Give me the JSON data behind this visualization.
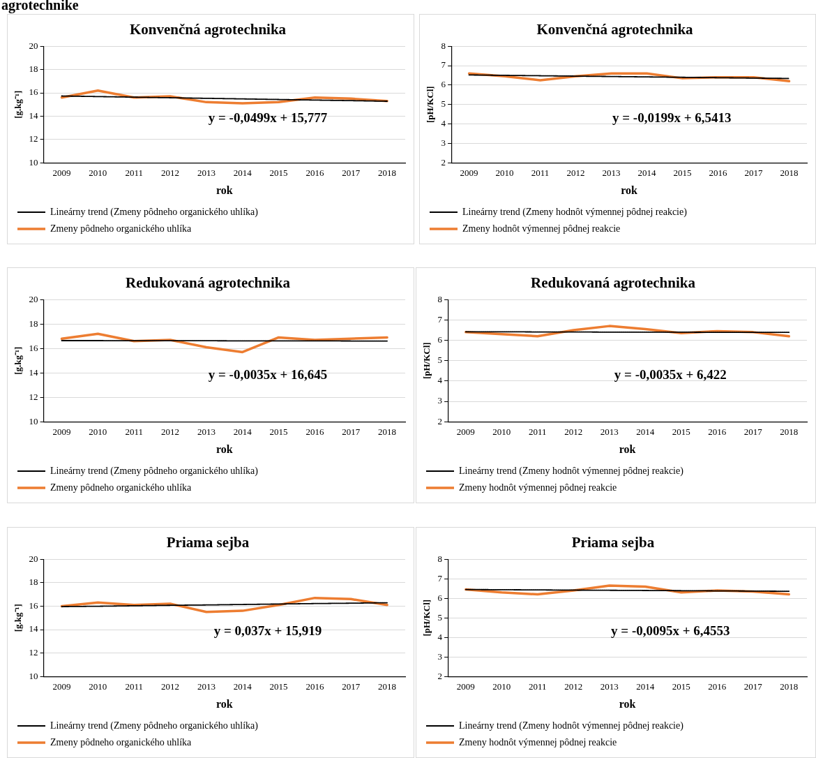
{
  "chart_data": [
    {
      "type": "line",
      "title": "Konvenčná agrotechnika",
      "xlabel": "rok",
      "ylabel": "[g.kg⁻¹]",
      "categories": [
        "2009",
        "2010",
        "2011",
        "2012",
        "2013",
        "2014",
        "2015",
        "2016",
        "2017",
        "2018"
      ],
      "ylim": [
        10,
        20
      ],
      "yticks": [
        10,
        12,
        14,
        16,
        18,
        20
      ],
      "grid": "y",
      "legend": "bottom",
      "marker": "none",
      "annotations": [
        "y = -0,0499x + 15,777",
        "agrotechnike"
      ],
      "series": [
        {
          "name": "Zmeny pôdneho organického uhlíka",
          "color": "#ed7d31",
          "line_style": "solid",
          "values": [
            15.6,
            16.2,
            15.6,
            15.7,
            15.2,
            15.1,
            15.2,
            15.6,
            15.5,
            15.3
          ]
        },
        {
          "name": "Lineárny trend (Zmeny pôdneho organického uhlíka)",
          "color": "#000000",
          "line_style": "dotted",
          "values": [
            15.73,
            15.68,
            15.63,
            15.58,
            15.53,
            15.48,
            15.43,
            15.38,
            15.33,
            15.28
          ]
        }
      ]
    },
    {
      "type": "line",
      "title": "Konvenčná agrotechnika",
      "xlabel": "rok",
      "ylabel": "[pH/KCl]",
      "categories": [
        "2009",
        "2010",
        "2011",
        "2012",
        "2013",
        "2014",
        "2015",
        "2016",
        "2017",
        "2018"
      ],
      "ylim": [
        2,
        8
      ],
      "yticks": [
        2,
        3,
        4,
        5,
        6,
        7,
        8
      ],
      "grid": "y",
      "legend": "bottom",
      "marker": "none",
      "annotations": [
        "y = -0,0199x + 6,5413"
      ],
      "series": [
        {
          "name": "Zmeny hodnôt výmennej pôdnej reakcie",
          "color": "#ed7d31",
          "line_style": "solid",
          "values": [
            6.6,
            6.45,
            6.25,
            6.45,
            6.6,
            6.6,
            6.35,
            6.4,
            6.4,
            6.2
          ]
        },
        {
          "name": "Lineárny trend (Zmeny hodnôt výmennej pôdnej reakcie)",
          "color": "#000000",
          "line_style": "dotted",
          "values": [
            6.52,
            6.5,
            6.48,
            6.46,
            6.44,
            6.42,
            6.4,
            6.38,
            6.36,
            6.34
          ]
        }
      ]
    },
    {
      "type": "line",
      "title": "Redukovaná agrotechnika",
      "xlabel": "rok",
      "ylabel": "[g.kg⁻¹]",
      "categories": [
        "2009",
        "2010",
        "2011",
        "2012",
        "2013",
        "2014",
        "2015",
        "2016",
        "2017",
        "2018"
      ],
      "ylim": [
        10,
        20
      ],
      "yticks": [
        10,
        12,
        14,
        16,
        18,
        20
      ],
      "grid": "y",
      "legend": "bottom",
      "marker": "none",
      "annotations": [
        "y = -0,0035x + 16,645"
      ],
      "series": [
        {
          "name": "Zmeny pôdneho organického uhlíka",
          "color": "#ed7d31",
          "line_style": "solid",
          "values": [
            16.8,
            17.2,
            16.6,
            16.7,
            16.1,
            15.7,
            16.9,
            16.7,
            16.8,
            16.9
          ]
        },
        {
          "name": "Lineárny trend (Zmeny pôdneho organického uhlíka)",
          "color": "#000000",
          "line_style": "dotted",
          "values": [
            16.64,
            16.64,
            16.63,
            16.63,
            16.63,
            16.62,
            16.62,
            16.62,
            16.61,
            16.61
          ]
        }
      ]
    },
    {
      "type": "line",
      "title": "Redukovaná agrotechnika",
      "xlabel": "rok",
      "ylabel": "[pH/KCl]",
      "categories": [
        "2009",
        "2010",
        "2011",
        "2012",
        "2013",
        "2014",
        "2015",
        "2016",
        "2017",
        "2018"
      ],
      "ylim": [
        2,
        8
      ],
      "yticks": [
        2,
        3,
        4,
        5,
        6,
        7,
        8
      ],
      "grid": "y",
      "legend": "bottom",
      "marker": "none",
      "annotations": [
        "y = -0,0035x + 6,422"
      ],
      "series": [
        {
          "name": "Zmeny hodnôt výmennej pôdnej reakcie",
          "color": "#ed7d31",
          "line_style": "solid",
          "values": [
            6.4,
            6.3,
            6.2,
            6.5,
            6.7,
            6.55,
            6.35,
            6.45,
            6.4,
            6.2
          ]
        },
        {
          "name": "Lineárny trend (Zmeny hodnôt výmennej pôdnej reakcie)",
          "color": "#000000",
          "line_style": "dotted",
          "values": [
            6.42,
            6.42,
            6.41,
            6.41,
            6.4,
            6.4,
            6.4,
            6.39,
            6.39,
            6.39
          ]
        }
      ]
    },
    {
      "type": "line",
      "title": "Priama sejba",
      "xlabel": "rok",
      "ylabel": "[g.kg⁻¹]",
      "categories": [
        "2009",
        "2010",
        "2011",
        "2012",
        "2013",
        "2014",
        "2015",
        "2016",
        "2017",
        "2018"
      ],
      "ylim": [
        10,
        20
      ],
      "yticks": [
        10,
        12,
        14,
        16,
        18,
        20
      ],
      "grid": "y",
      "legend": "bottom",
      "marker": "none",
      "annotations": [
        "y = 0,037x + 15,919"
      ],
      "series": [
        {
          "name": "Zmeny pôdneho organického uhlíka",
          "color": "#ed7d31",
          "line_style": "solid",
          "values": [
            16.0,
            16.3,
            16.1,
            16.2,
            15.5,
            15.6,
            16.1,
            16.7,
            16.6,
            16.1
          ]
        },
        {
          "name": "Lineárny trend (Zmeny pôdneho organického uhlíka)",
          "color": "#000000",
          "line_style": "dotted",
          "values": [
            15.96,
            15.99,
            16.03,
            16.07,
            16.1,
            16.14,
            16.18,
            16.22,
            16.25,
            16.29
          ]
        }
      ]
    },
    {
      "type": "line",
      "title": "Priama sejba",
      "xlabel": "rok",
      "ylabel": "[pH/KCl]",
      "categories": [
        "2009",
        "2010",
        "2011",
        "2012",
        "2013",
        "2014",
        "2015",
        "2016",
        "2017",
        "2018"
      ],
      "ylim": [
        2,
        8
      ],
      "yticks": [
        2,
        3,
        4,
        5,
        6,
        7,
        8
      ],
      "grid": "y",
      "legend": "bottom",
      "marker": "none",
      "annotations": [
        "y = -0,0095x + 6,4553"
      ],
      "series": [
        {
          "name": "Zmeny hodnôt výmennej pôdnej reakcie",
          "color": "#ed7d31",
          "line_style": "solid",
          "values": [
            6.45,
            6.3,
            6.2,
            6.4,
            6.65,
            6.6,
            6.3,
            6.4,
            6.35,
            6.2
          ]
        },
        {
          "name": "Lineárny trend (Zmeny hodnôt výmennej pôdnej reakcie)",
          "color": "#000000",
          "line_style": "dotted",
          "values": [
            6.45,
            6.44,
            6.43,
            6.42,
            6.41,
            6.4,
            6.39,
            6.38,
            6.37,
            6.36
          ]
        }
      ]
    }
  ]
}
